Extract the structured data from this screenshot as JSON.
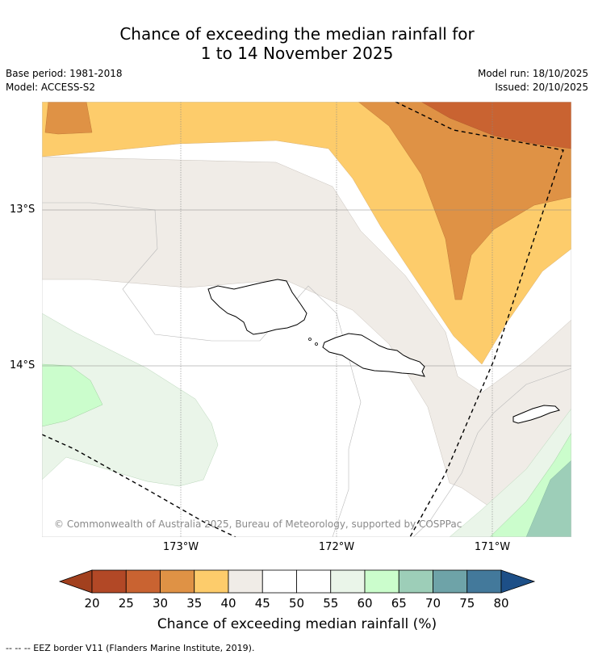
{
  "title": {
    "line1": "Chance of exceeding the median rainfall for",
    "line2": "1 to 14 November 2025"
  },
  "meta": {
    "base_period": "Base period: 1981-2018",
    "model": "Model: ACCESS-S2",
    "model_run": "Model run: 18/10/2025",
    "issued": "Issued: 20/10/2025"
  },
  "map": {
    "lat_labels": [
      "13°S",
      "14°S"
    ],
    "lon_labels": [
      "173°W",
      "172°W",
      "171°W"
    ],
    "copyright": "© Commonwealth of Australia 2025, Bureau of Meteorology, supported by COSPPac"
  },
  "colorbar": {
    "ticks": [
      "20",
      "25",
      "30",
      "35",
      "40",
      "45",
      "50",
      "55",
      "60",
      "65",
      "70",
      "75",
      "80"
    ],
    "colors": [
      "#a2401e",
      "#b24826",
      "#c96331",
      "#df9245",
      "#fdcc6b",
      "#f0ece7",
      "#ffffff",
      "#ffffff",
      "#eaf5e9",
      "#cbfdcc",
      "#9dceb8",
      "#6ea3a8",
      "#43799b",
      "#1d4f87"
    ],
    "label": "Chance of exceeding median rainfall (%)"
  },
  "footnote": "--  --  -- EEZ border V11 (Flanders Marine Institute, 2019)."
}
